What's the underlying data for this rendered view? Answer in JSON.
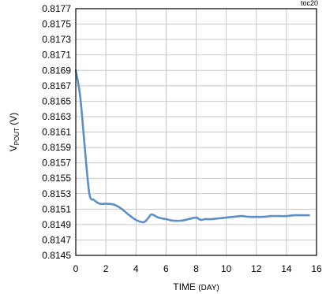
{
  "chart_data": {
    "type": "line",
    "tag": "toc20",
    "xlabel": {
      "main": "TIME ",
      "sub": "(DAY)"
    },
    "ylabel": {
      "main": "V",
      "subscript": "POUT",
      "unit": " (V)"
    },
    "xlim": [
      0,
      16
    ],
    "ylim": [
      0.8145,
      0.8177
    ],
    "x_ticks": [
      "0",
      "2",
      "4",
      "6",
      "8",
      "10",
      "12",
      "14",
      "16"
    ],
    "y_ticks": [
      "0.8177",
      "0.8175",
      "0.8173",
      "0.8171",
      "0.8169",
      "0.8167",
      "0.8165",
      "0.8163",
      "0.8161",
      "0.8159",
      "0.8157",
      "0.8155",
      "0.8153",
      "0.8151",
      "0.8149",
      "0.8147",
      "0.8145"
    ],
    "grid": true,
    "series": [
      {
        "color": "#5b8fc7",
        "points": [
          [
            0,
            0.8169
          ],
          [
            0.3,
            0.81655
          ],
          [
            0.6,
            0.8159
          ],
          [
            0.9,
            0.8153
          ],
          [
            1.2,
            0.81522
          ],
          [
            1.6,
            0.81517
          ],
          [
            2.0,
            0.81517
          ],
          [
            2.5,
            0.81516
          ],
          [
            3.0,
            0.81511
          ],
          [
            3.5,
            0.81503
          ],
          [
            4.0,
            0.81496
          ],
          [
            4.5,
            0.81493
          ],
          [
            4.8,
            0.81498
          ],
          [
            5.0,
            0.81503
          ],
          [
            5.2,
            0.81502
          ],
          [
            5.5,
            0.81499
          ],
          [
            6.0,
            0.81497
          ],
          [
            6.5,
            0.81495
          ],
          [
            7.0,
            0.81495
          ],
          [
            7.5,
            0.81497
          ],
          [
            8.0,
            0.81499
          ],
          [
            8.3,
            0.81496
          ],
          [
            8.6,
            0.81497
          ],
          [
            9.0,
            0.81497
          ],
          [
            9.5,
            0.81498
          ],
          [
            10.0,
            0.81499
          ],
          [
            10.5,
            0.815
          ],
          [
            11.0,
            0.81501
          ],
          [
            11.5,
            0.815
          ],
          [
            12.0,
            0.815
          ],
          [
            12.5,
            0.815
          ],
          [
            13.0,
            0.81501
          ],
          [
            13.5,
            0.81501
          ],
          [
            14.0,
            0.81501
          ],
          [
            14.5,
            0.81502
          ],
          [
            15.0,
            0.81502
          ],
          [
            15.5,
            0.81502
          ]
        ]
      }
    ]
  }
}
